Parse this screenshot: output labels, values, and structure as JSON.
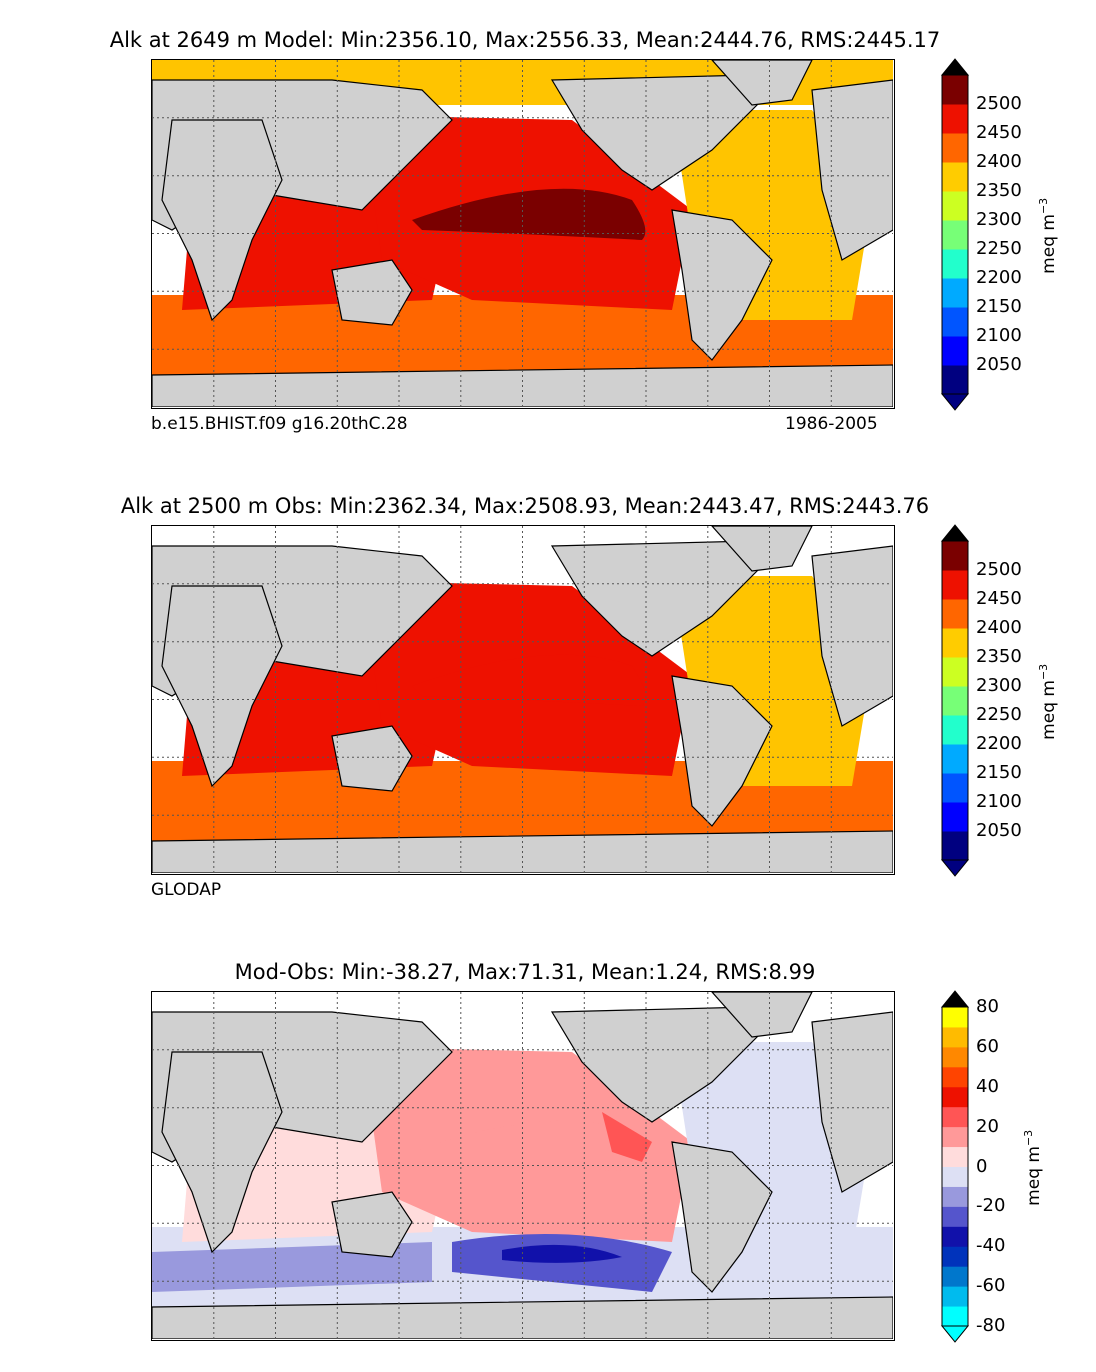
{
  "panels": [
    {
      "title": "Alk at 2649 m Model: Min:2356.10, Max:2556.33, Mean:2444.76, RMS:2445.17",
      "note_left": "b.e15.BHIST.f09 g16.20thC.28",
      "note_right": "1986-2005",
      "colorbar": {
        "unit_base": "meq m",
        "unit_exp": "−3",
        "ticks": [
          "2500",
          "2450",
          "2400",
          "2350",
          "2300",
          "2250",
          "2200",
          "2150",
          "2100",
          "2050"
        ],
        "colors": [
          "#000080",
          "#0000ff",
          "#0055ff",
          "#00aaff",
          "#22ffcc",
          "#77ff77",
          "#ccff22",
          "#ffcc00",
          "#ff6600",
          "#ee1100",
          "#7a0000"
        ],
        "under_color": "#000080",
        "over_color": "#000000"
      },
      "regions": {
        "arctic": "#ffc400",
        "indian": "#ee1100",
        "pacific_north": "#ee1100",
        "pacific_core": "#7a0000",
        "atlantic": "#ffc400",
        "southern": "#ff6600",
        "land": "#d0d0d0"
      }
    },
    {
      "title": "Alk at 2500 m Obs: Min:2362.34, Max:2508.93, Mean:2443.47, RMS:2443.76",
      "note_left": "GLODAP",
      "note_right": "",
      "colorbar": {
        "unit_base": "meq m",
        "unit_exp": "−3",
        "ticks": [
          "2500",
          "2450",
          "2400",
          "2350",
          "2300",
          "2250",
          "2200",
          "2150",
          "2100",
          "2050"
        ],
        "colors": [
          "#000080",
          "#0000ff",
          "#0055ff",
          "#00aaff",
          "#22ffcc",
          "#77ff77",
          "#ccff22",
          "#ffcc00",
          "#ff6600",
          "#ee1100",
          "#7a0000"
        ],
        "under_color": "#000080",
        "over_color": "#000000"
      },
      "regions": {
        "arctic": "#ffffff",
        "indian": "#ee1100",
        "pacific_north": "#ee1100",
        "pacific_core": "#ee1100",
        "atlantic": "#ffc400",
        "southern": "#ff6600",
        "land": "#d0d0d0"
      }
    },
    {
      "title": "Mod-Obs: Min:-38.27, Max:71.31, Mean:1.24, RMS:8.99",
      "note_left": "",
      "note_right": "",
      "colorbar": {
        "unit_base": "meq m",
        "unit_exp": "−3",
        "ticks": [
          "80",
          "60",
          "40",
          "20",
          "0",
          "-20",
          "-40",
          "-60",
          "-80"
        ],
        "colors": [
          "#00ffff",
          "#00bbee",
          "#0077cc",
          "#0033bb",
          "#1111aa",
          "#5555cc",
          "#9999dd",
          "#dde0f4",
          "#ffdcdc",
          "#ff9999",
          "#ff5555",
          "#ee1100",
          "#ff4400",
          "#ff8800",
          "#ffbb00",
          "#ffff00"
        ],
        "under_color": "#00ffff",
        "over_color": "#000000"
      },
      "regions": {
        "arctic": "#ffffff",
        "indian": "#ffdcdc",
        "pacific_north": "#ff9999",
        "pacific_core": "#ff9999",
        "atlantic": "#dde0f4",
        "southern": "#dde0f4",
        "land": "#d0d0d0"
      }
    }
  ]
}
